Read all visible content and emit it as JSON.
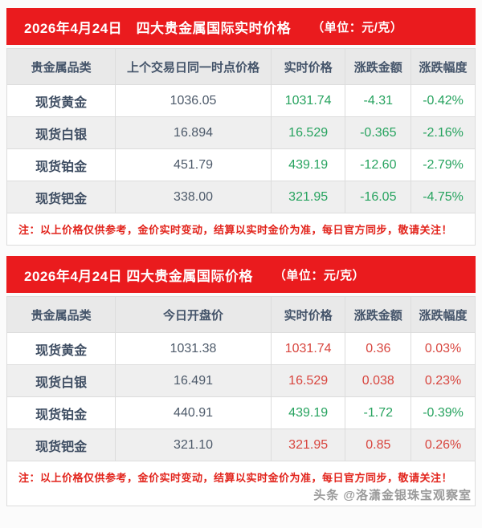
{
  "colors": {
    "header_bar": "#ea1b1e",
    "note_red": "#e2241c",
    "up": "#d8453e",
    "down": "#27a35f",
    "dark_text": "#44546a"
  },
  "watermark": "头条 @洛潇金银珠宝观察室",
  "tables": [
    {
      "title": "2026年4月24日　四大贵金属国际实时价格",
      "unit": "（单位：元/克）",
      "columns": [
        "贵金属品类",
        "上个交易日同一时点价格",
        "实时价格",
        "涨跌金额",
        "涨跌幅度"
      ],
      "rows": [
        {
          "name": "现货黄金",
          "base": "1036.05",
          "current": "1031.74",
          "change": "-4.31",
          "percent": "-0.42%",
          "trend": "down"
        },
        {
          "name": "现货白银",
          "base": "16.894",
          "current": "16.529",
          "change": "-0.365",
          "percent": "-2.16%",
          "trend": "down"
        },
        {
          "name": "现货铂金",
          "base": "451.79",
          "current": "439.19",
          "change": "-12.60",
          "percent": "-2.79%",
          "trend": "down"
        },
        {
          "name": "现货钯金",
          "base": "338.00",
          "current": "321.95",
          "change": "-16.05",
          "percent": "-4.75%",
          "trend": "down"
        }
      ],
      "note": "注：以上价格仅供参考，金价实时变动，结算以实时金价为准，每日官方同步，敬请关注！"
    },
    {
      "title": "2026年4月24日 四大贵金属国际价格",
      "unit": "（单位：元/克）",
      "columns": [
        "贵金属品类",
        "今日开盘价",
        "实时价格",
        "涨跌金额",
        "涨跌幅度"
      ],
      "rows": [
        {
          "name": "现货黄金",
          "base": "1031.38",
          "current": "1031.74",
          "change": "0.36",
          "percent": "0.03%",
          "trend": "up"
        },
        {
          "name": "现货白银",
          "base": "16.491",
          "current": "16.529",
          "change": "0.038",
          "percent": "0.23%",
          "trend": "up"
        },
        {
          "name": "现货铂金",
          "base": "440.91",
          "current": "439.19",
          "change": "-1.72",
          "percent": "-0.39%",
          "trend": "down"
        },
        {
          "name": "现货钯金",
          "base": "321.10",
          "current": "321.95",
          "change": "0.85",
          "percent": "0.26%",
          "trend": "up"
        }
      ],
      "note": "注：以上价格仅供参考，金价实时变动，结算以实时金价为准，每日官方同步，敬请关注！"
    }
  ]
}
